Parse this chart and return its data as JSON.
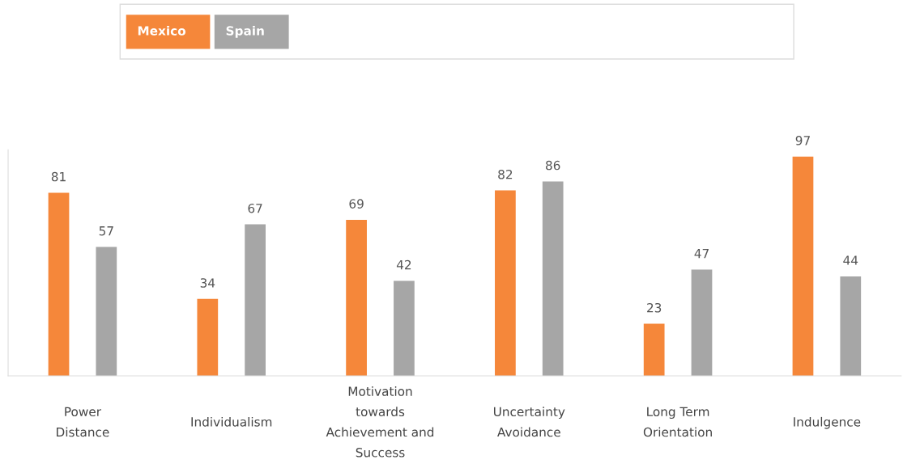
{
  "chart_data": {
    "type": "bar",
    "categories": [
      "Power\nDistance",
      "Individualism",
      "Motivation\ntowards\nAchievement and\nSuccess",
      "Uncertainty\nAvoidance",
      "Long Term\nOrientation",
      "Indulgence"
    ],
    "series": [
      {
        "name": "Mexico",
        "color": "#f5873a",
        "values": [
          81,
          34,
          69,
          82,
          23,
          97
        ]
      },
      {
        "name": "Spain",
        "color": "#a6a6a6",
        "values": [
          57,
          67,
          42,
          86,
          47,
          44
        ]
      }
    ],
    "ylim": [
      0,
      100
    ],
    "tick_labels": "x",
    "data_labels": true,
    "grid": false,
    "legend": "top"
  }
}
